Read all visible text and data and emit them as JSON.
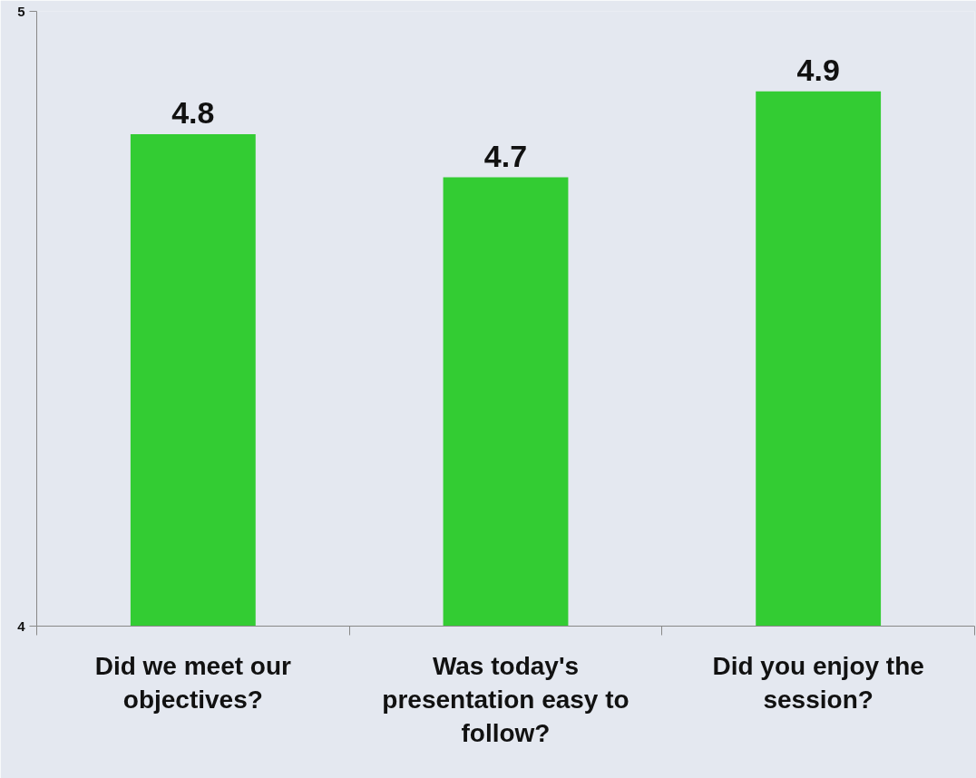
{
  "chart_data": {
    "type": "bar",
    "categories": [
      "Did we meet our objectives?",
      "Was today's presentation easy to follow?",
      "Did you enjoy the session?"
    ],
    "values": [
      4.8,
      4.73,
      4.87
    ],
    "value_labels": [
      "4.8",
      "4.7",
      "4.9"
    ],
    "color": "#33cc33",
    "ylim": [
      4,
      5
    ],
    "yticks": [
      4,
      5
    ],
    "grid": false
  }
}
